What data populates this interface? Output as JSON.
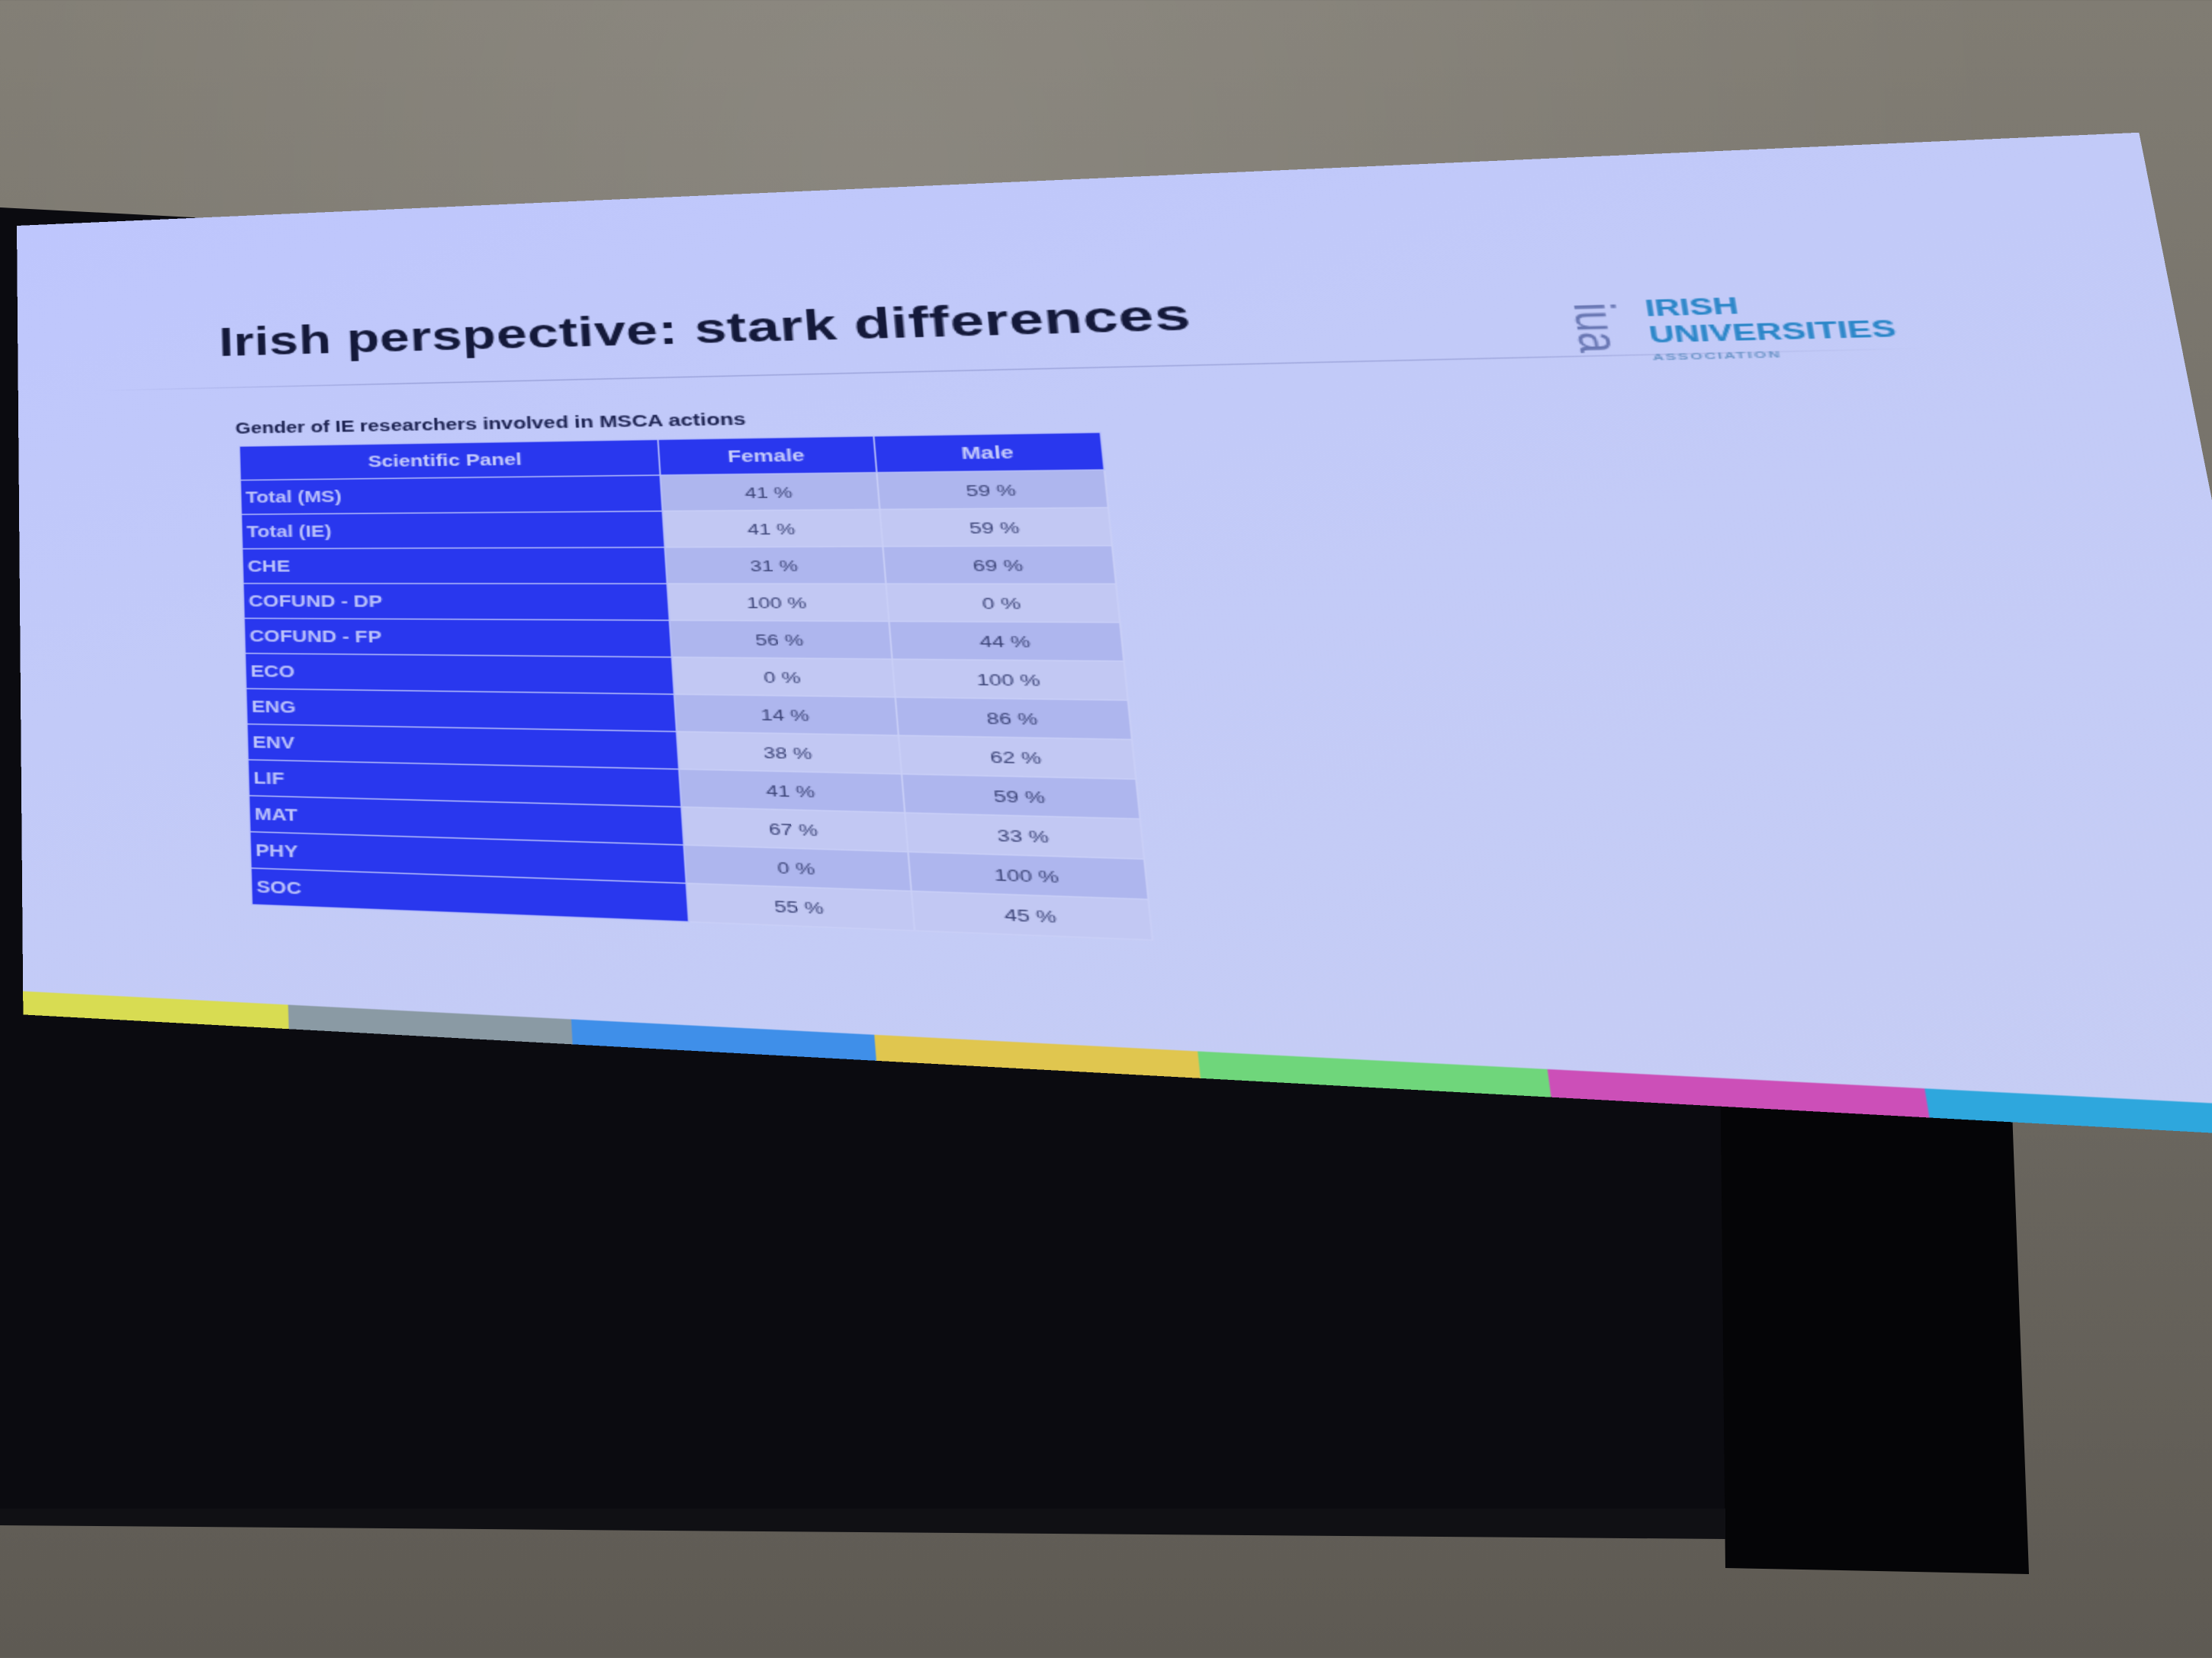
{
  "slide": {
    "title": "Irish perspective: stark differences",
    "logo": {
      "mark": "iua",
      "line1": "IRISH",
      "line2": "UNIVERSITIES",
      "line3": "ASSOCIATION"
    },
    "table_caption": "Gender of IE researchers involved in MSCA actions",
    "table": {
      "headers": [
        "Scientific Panel",
        "Female",
        "Male"
      ],
      "rows": [
        {
          "panel": "Total (MS)",
          "female": "41 %",
          "male": "59 %"
        },
        {
          "panel": "Total (IE)",
          "female": "41 %",
          "male": "59 %"
        },
        {
          "panel": "CHE",
          "female": "31 %",
          "male": "69 %"
        },
        {
          "panel": "COFUND - DP",
          "female": "100 %",
          "male": "0 %"
        },
        {
          "panel": "COFUND - FP",
          "female": "56 %",
          "male": "44 %"
        },
        {
          "panel": "ECO",
          "female": "0 %",
          "male": "100 %"
        },
        {
          "panel": "ENG",
          "female": "14 %",
          "male": "86 %"
        },
        {
          "panel": "ENV",
          "female": "38 %",
          "male": "62 %"
        },
        {
          "panel": "LIF",
          "female": "41 %",
          "male": "59 %"
        },
        {
          "panel": "MAT",
          "female": "67 %",
          "male": "33 %"
        },
        {
          "panel": "PHY",
          "female": "0 %",
          "male": "100 %"
        },
        {
          "panel": "SOC",
          "female": "55 %",
          "male": "45 %"
        }
      ]
    },
    "bottom_strip_colors": [
      "#d8dc52",
      "#8a9aa4",
      "#3f8fe9",
      "#e0c64f",
      "#6fd67b",
      "#cc4fb8",
      "#2ea7dd"
    ]
  },
  "colors": {
    "slide_background": "#c2caf8",
    "table_header_blue": "#2937ee",
    "title_text": "#14193a",
    "logo_blue": "#2a86c8"
  }
}
